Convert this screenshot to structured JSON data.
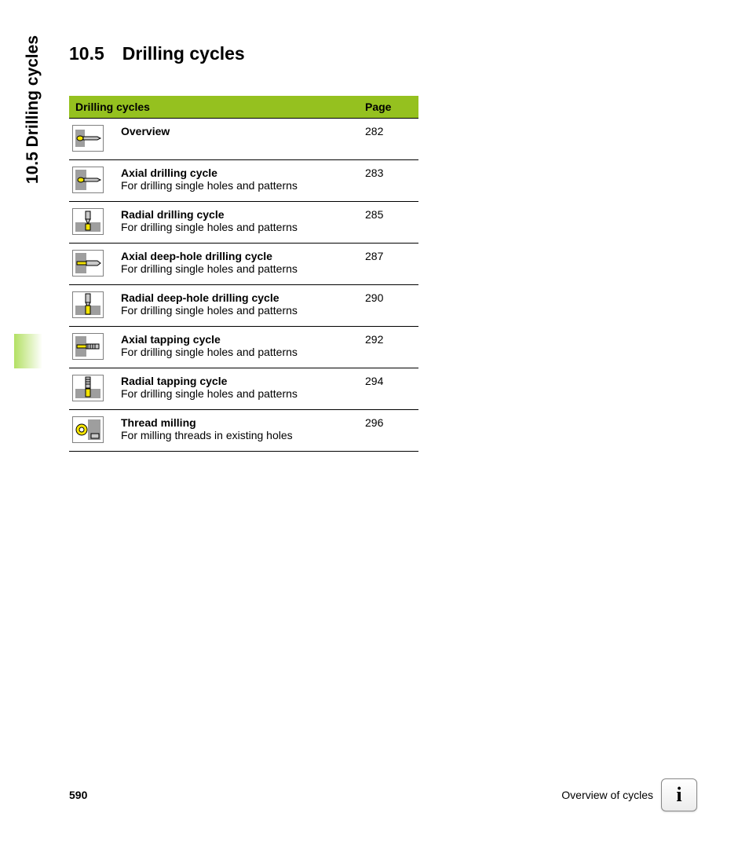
{
  "side_label": "10.5 Drilling cycles",
  "heading": "10.5 Drilling cycles",
  "table": {
    "header_left": "Drilling cycles",
    "header_right": "Page",
    "header_bg": "#95c11f",
    "rows": [
      {
        "icon": "overview",
        "title": "Overview",
        "desc": "",
        "page": "282"
      },
      {
        "icon": "axial-drill",
        "title": "Axial drilling cycle",
        "desc": "For drilling single holes and patterns",
        "page": "283"
      },
      {
        "icon": "radial-drill",
        "title": "Radial drilling cycle",
        "desc": "For drilling single holes and patterns",
        "page": "285"
      },
      {
        "icon": "axial-deep",
        "title": "Axial deep-hole drilling cycle",
        "desc": "For drilling single holes and patterns",
        "page": "287"
      },
      {
        "icon": "radial-deep",
        "title": "Radial deep-hole drilling cycle",
        "desc": "For drilling single holes and patterns",
        "page": "290"
      },
      {
        "icon": "axial-tap",
        "title": "Axial tapping cycle",
        "desc": "For drilling single holes and patterns",
        "page": "292"
      },
      {
        "icon": "radial-tap",
        "title": "Radial tapping cycle",
        "desc": "For drilling single holes and patterns",
        "page": "294"
      },
      {
        "icon": "thread-mill",
        "title": "Thread milling",
        "desc": "For milling threads in existing holes",
        "page": "296"
      }
    ]
  },
  "icon_palette": {
    "frame": "#808080",
    "work": "#9e9e9e",
    "tool": "#f4e400",
    "steel": "#c9c9c9",
    "line": "#000000",
    "bg": "#ffffff"
  },
  "footer": {
    "page_number": "590",
    "caption": "Overview of cycles",
    "info_glyph": "i"
  }
}
